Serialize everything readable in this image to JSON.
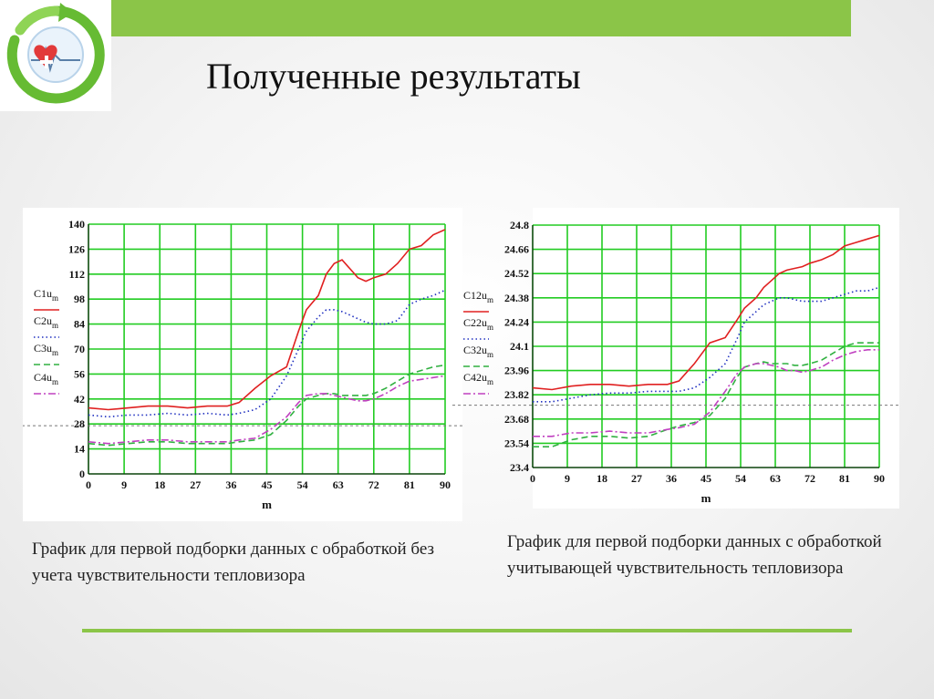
{
  "slide": {
    "title": "Полученные результаты",
    "accent_color": "#8bc548",
    "logo_icon": "heart-cardiogram-recycle-icon"
  },
  "captions": [
    "График для первой подборки данных с обработкой без учета чувствительности тепловизора",
    "График для первой подборки данных с обработкой учитывающей чувствительность тепловизора"
  ],
  "chart_data": [
    {
      "type": "line",
      "xlabel": "m",
      "xlim": [
        0,
        90
      ],
      "ylim": [
        0,
        140
      ],
      "x_ticks": [
        "0",
        "9",
        "18",
        "27",
        "36",
        "45",
        "54",
        "63",
        "72",
        "81",
        "90"
      ],
      "y_ticks": [
        "0",
        "14",
        "28",
        "42",
        "56",
        "70",
        "84",
        "98",
        "112",
        "126",
        "140"
      ],
      "grid": true,
      "grid_color": "#22cc22",
      "legend_position": "left",
      "reference_line_y": 27,
      "x": [
        0,
        5,
        10,
        15,
        20,
        25,
        30,
        35,
        38,
        42,
        46,
        50,
        53,
        55,
        58,
        60,
        62,
        64,
        66,
        68,
        70,
        72,
        75,
        78,
        81,
        84,
        87,
        90
      ],
      "series": [
        {
          "name": "C1u",
          "subscript": "m",
          "color": "#e02020",
          "dash": "solid",
          "values": [
            37,
            36,
            37,
            38,
            38,
            37,
            38,
            38,
            40,
            48,
            55,
            60,
            80,
            92,
            100,
            112,
            118,
            120,
            115,
            110,
            108,
            110,
            112,
            118,
            126,
            128,
            134,
            137
          ]
        },
        {
          "name": "C2u",
          "subscript": "m",
          "color": "#2030c0",
          "dash": "dot",
          "values": [
            33,
            32,
            33,
            33,
            34,
            33,
            34,
            33,
            34,
            36,
            42,
            55,
            70,
            80,
            88,
            92,
            92,
            91,
            89,
            87,
            85,
            84,
            84,
            86,
            95,
            98,
            100,
            103
          ]
        },
        {
          "name": "C3u",
          "subscript": "m",
          "color": "#30b040",
          "dash": "dash",
          "values": [
            17,
            16,
            17,
            18,
            18,
            17,
            17,
            17,
            18,
            19,
            22,
            30,
            38,
            42,
            44,
            45,
            45,
            44,
            44,
            44,
            44,
            45,
            48,
            52,
            56,
            58,
            60,
            61
          ]
        },
        {
          "name": "C4u",
          "subscript": "m",
          "color": "#c040c0",
          "dash": "dashdot",
          "values": [
            18,
            17,
            18,
            19,
            19,
            18,
            18,
            18,
            19,
            20,
            25,
            32,
            40,
            44,
            45,
            45,
            44,
            43,
            42,
            41,
            41,
            42,
            45,
            49,
            52,
            53,
            54,
            55
          ]
        }
      ]
    },
    {
      "type": "line",
      "xlabel": "m",
      "xlim": [
        0,
        90
      ],
      "ylim": [
        23.4,
        24.8
      ],
      "x_ticks": [
        "0",
        "9",
        "18",
        "27",
        "36",
        "45",
        "54",
        "63",
        "72",
        "81",
        "90"
      ],
      "y_ticks": [
        "23.4",
        "23.54",
        "23.68",
        "23.82",
        "23.96",
        "24.1",
        "24.24",
        "24.38",
        "24.52",
        "24.66",
        "24.8"
      ],
      "grid": true,
      "grid_color": "#22cc22",
      "legend_position": "left",
      "reference_line_y": 23.76,
      "x": [
        0,
        5,
        10,
        15,
        20,
        25,
        30,
        35,
        38,
        42,
        46,
        50,
        53,
        55,
        58,
        60,
        62,
        64,
        66,
        68,
        70,
        72,
        75,
        78,
        81,
        84,
        87,
        90
      ],
      "series": [
        {
          "name": "C12u",
          "subscript": "m",
          "color": "#e02020",
          "dash": "solid",
          "values": [
            23.86,
            23.85,
            23.87,
            23.88,
            23.88,
            23.87,
            23.88,
            23.88,
            23.9,
            24.0,
            24.12,
            24.15,
            24.25,
            24.32,
            24.38,
            24.44,
            24.48,
            24.52,
            24.54,
            24.55,
            24.56,
            24.58,
            24.6,
            24.63,
            24.68,
            24.7,
            24.72,
            24.74
          ]
        },
        {
          "name": "C22u",
          "subscript": "m",
          "color": "#2030c0",
          "dash": "dot",
          "values": [
            23.78,
            23.78,
            23.8,
            23.82,
            23.83,
            23.83,
            23.84,
            23.84,
            23.84,
            23.86,
            23.92,
            24.0,
            24.14,
            24.24,
            24.3,
            24.34,
            24.36,
            24.38,
            24.38,
            24.37,
            24.36,
            24.36,
            24.36,
            24.38,
            24.4,
            24.42,
            24.42,
            24.44
          ]
        },
        {
          "name": "C32u",
          "subscript": "m",
          "color": "#30b040",
          "dash": "dash",
          "values": [
            23.52,
            23.52,
            23.56,
            23.58,
            23.58,
            23.57,
            23.58,
            23.62,
            23.64,
            23.66,
            23.7,
            23.8,
            23.92,
            23.98,
            24.0,
            24.01,
            24.0,
            24.0,
            24.0,
            23.99,
            23.99,
            24.0,
            24.02,
            24.06,
            24.1,
            24.12,
            24.12,
            24.12
          ]
        },
        {
          "name": "C42u",
          "subscript": "m",
          "color": "#c040c0",
          "dash": "dashdot",
          "values": [
            23.58,
            23.58,
            23.6,
            23.6,
            23.61,
            23.6,
            23.6,
            23.62,
            23.63,
            23.65,
            23.72,
            23.84,
            23.94,
            23.98,
            24.0,
            24.0,
            23.99,
            23.98,
            23.96,
            23.96,
            23.95,
            23.96,
            23.98,
            24.02,
            24.05,
            24.07,
            24.08,
            24.08
          ]
        }
      ]
    }
  ]
}
